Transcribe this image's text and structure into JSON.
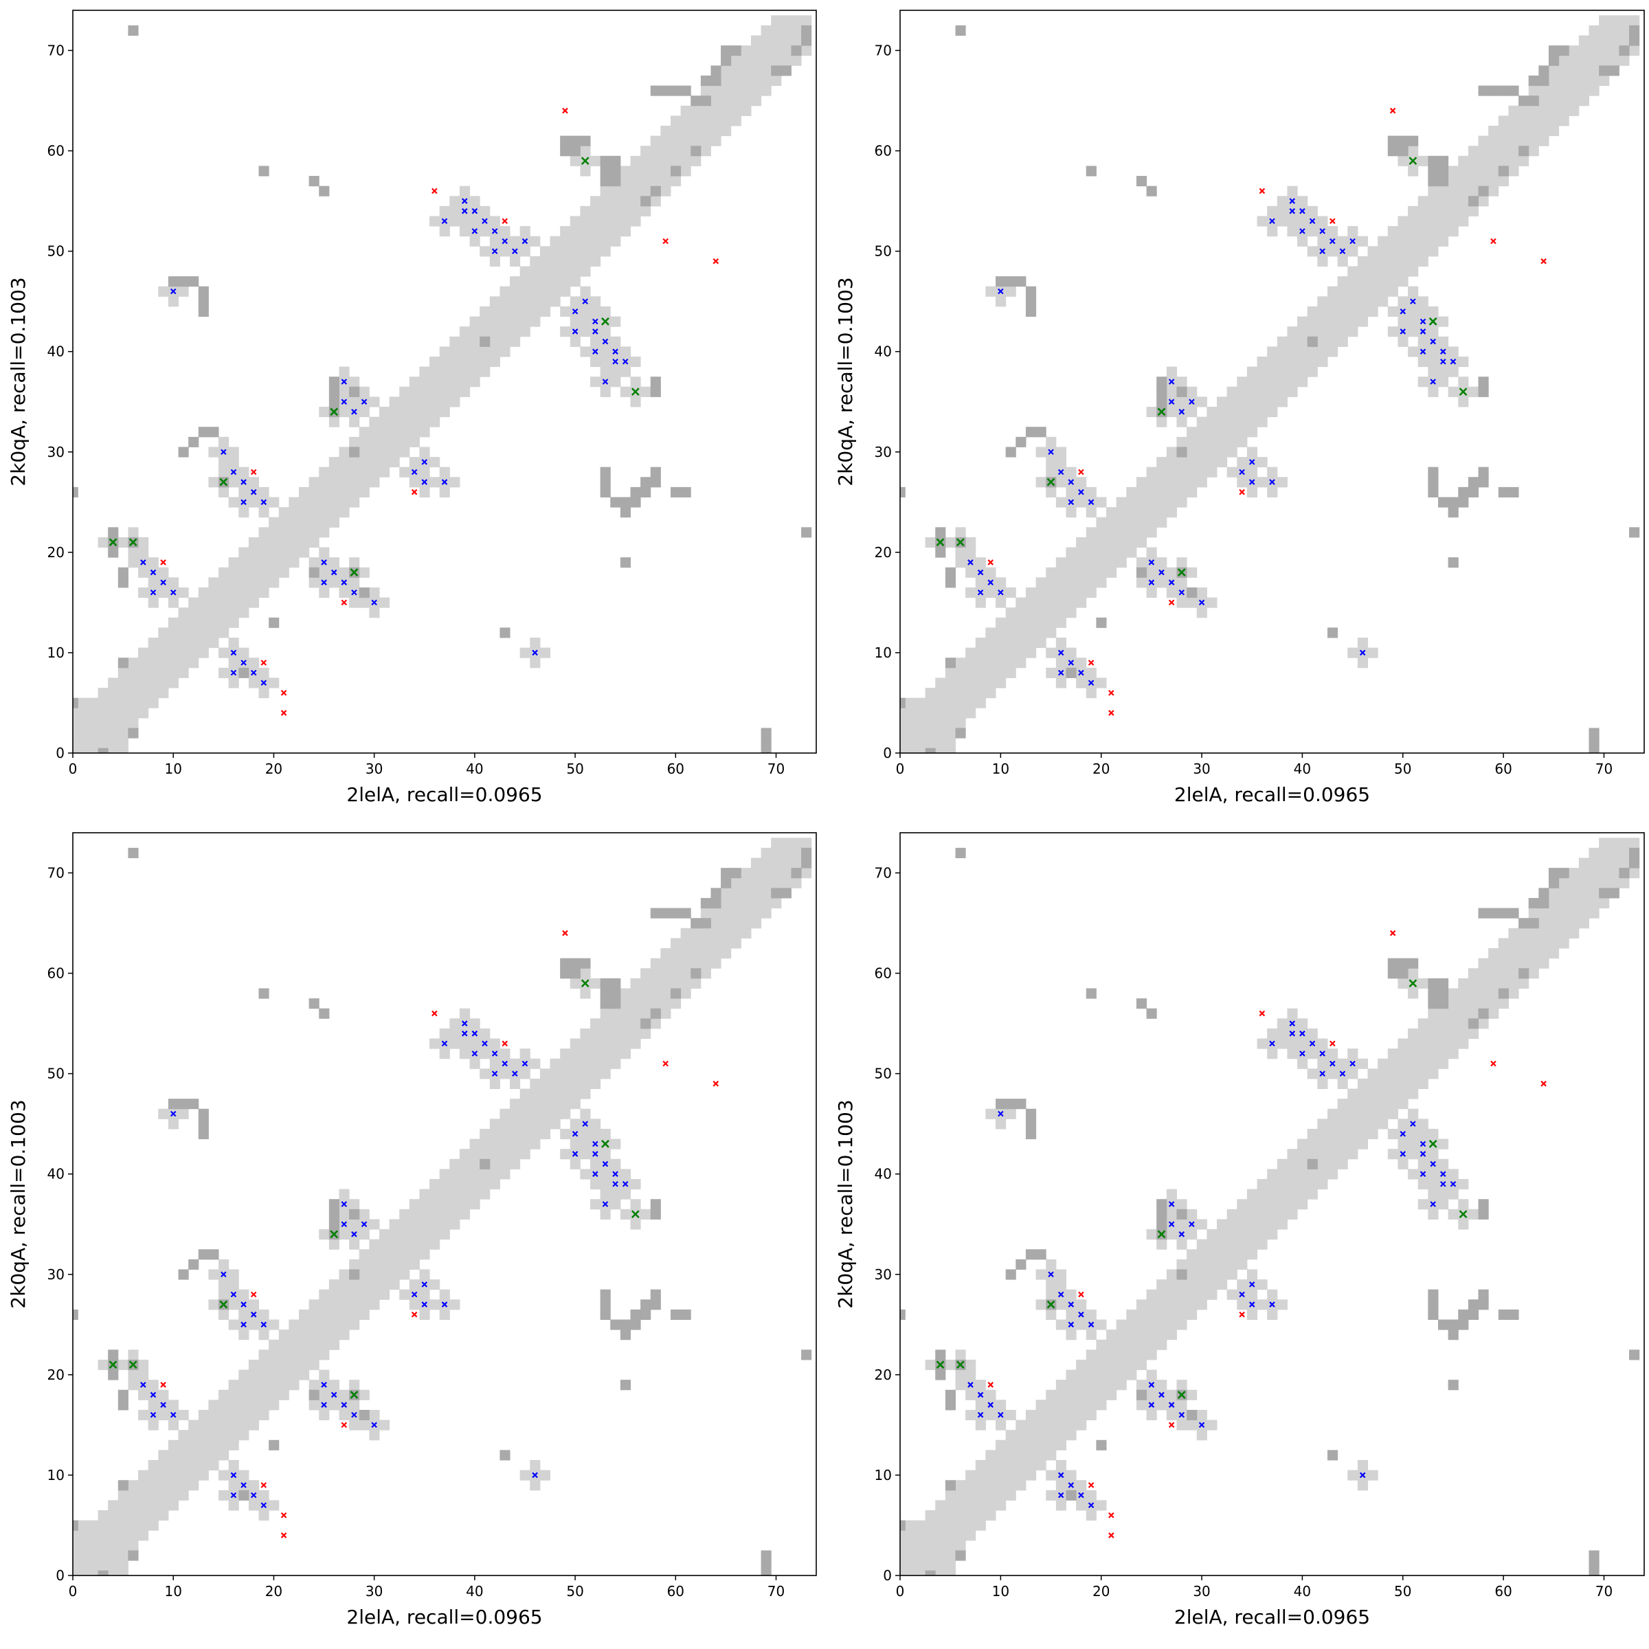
{
  "chart_data": {
    "type": "heatmap",
    "title": "",
    "layout": "2x2 grid of identical contact maps",
    "xlim": [
      0,
      74
    ],
    "ylim": [
      0,
      74
    ],
    "xticks": [
      0,
      10,
      20,
      30,
      40,
      50,
      60,
      70
    ],
    "yticks": [
      0,
      10,
      20,
      30,
      40,
      50,
      60,
      70
    ],
    "colors": {
      "light": "#d3d3d3",
      "dark": "#a9a9a9",
      "blue": "#0000ff",
      "green": "#008000",
      "red": "#ff0000"
    },
    "panels": [
      {
        "xlabel": "2lelA, recall=0.0965",
        "ylabel": "2k0qA, recall=0.1003"
      },
      {
        "xlabel": "2lelA, recall=0.0965",
        "ylabel": "2k0qA, recall=0.1003"
      },
      {
        "xlabel": "2lelA, recall=0.0965",
        "ylabel": "2k0qA, recall=0.1003"
      },
      {
        "xlabel": "2lelA, recall=0.0965",
        "ylabel": "2k0qA, recall=0.1003"
      }
    ],
    "diagonal_band_halfwidth": 3,
    "dark_cells": [
      [
        6,
        72
      ],
      [
        19,
        58
      ],
      [
        24,
        57
      ],
      [
        25,
        56
      ],
      [
        49,
        61
      ],
      [
        50,
        61
      ],
      [
        51,
        61
      ],
      [
        49,
        60
      ],
      [
        50,
        60
      ],
      [
        53,
        59
      ],
      [
        54,
        59
      ],
      [
        53,
        58
      ],
      [
        54,
        58
      ],
      [
        53,
        57
      ],
      [
        54,
        57
      ],
      [
        10,
        47
      ],
      [
        11,
        47
      ],
      [
        12,
        47
      ],
      [
        13,
        46
      ],
      [
        13,
        45
      ],
      [
        13,
        44
      ],
      [
        26,
        37
      ],
      [
        26,
        36
      ],
      [
        26,
        35
      ],
      [
        26,
        34
      ],
      [
        28,
        36
      ],
      [
        28,
        30
      ],
      [
        13,
        32
      ],
      [
        14,
        32
      ],
      [
        12,
        31
      ],
      [
        11,
        30
      ],
      [
        4,
        22
      ],
      [
        4,
        21
      ],
      [
        4,
        20
      ],
      [
        6,
        21
      ],
      [
        5,
        18
      ],
      [
        5,
        17
      ],
      [
        15,
        27
      ],
      [
        0,
        26
      ],
      [
        53,
        28
      ],
      [
        53,
        27
      ],
      [
        53,
        26
      ],
      [
        54,
        25
      ],
      [
        55,
        25
      ],
      [
        55,
        24
      ],
      [
        56,
        26
      ],
      [
        57,
        26
      ],
      [
        57,
        27
      ],
      [
        58,
        28
      ],
      [
        58,
        27
      ],
      [
        56,
        25
      ],
      [
        60,
        26
      ],
      [
        61,
        26
      ],
      [
        55,
        19
      ],
      [
        58,
        37
      ],
      [
        58,
        36
      ],
      [
        73,
        22
      ],
      [
        43,
        12
      ],
      [
        69,
        2
      ],
      [
        69,
        1
      ],
      [
        69,
        0
      ],
      [
        17,
        8
      ],
      [
        24,
        18
      ],
      [
        28,
        18
      ],
      [
        29,
        16
      ],
      [
        20,
        13
      ],
      [
        5,
        9
      ],
      [
        6,
        2
      ],
      [
        3,
        0
      ],
      [
        0,
        5
      ],
      [
        58,
        66
      ],
      [
        59,
        66
      ],
      [
        60,
        66
      ],
      [
        61,
        66
      ],
      [
        62,
        65
      ],
      [
        63,
        65
      ],
      [
        63,
        67
      ],
      [
        64,
        67
      ],
      [
        64,
        68
      ],
      [
        65,
        69
      ],
      [
        65,
        70
      ],
      [
        66,
        70
      ],
      [
        70,
        68
      ],
      [
        71,
        68
      ],
      [
        72,
        70
      ],
      [
        73,
        71
      ],
      [
        73,
        72
      ],
      [
        57,
        55
      ],
      [
        58,
        56
      ],
      [
        60,
        58
      ],
      [
        62,
        60
      ],
      [
        41,
        41
      ]
    ],
    "markers": {
      "blue": [
        [
          10,
          46
        ],
        [
          39,
          55
        ],
        [
          39,
          54
        ],
        [
          40,
          54
        ],
        [
          37,
          53
        ],
        [
          41,
          53
        ],
        [
          40,
          52
        ],
        [
          42,
          52
        ],
        [
          43,
          51
        ],
        [
          45,
          51
        ],
        [
          42,
          50
        ],
        [
          44,
          50
        ],
        [
          51,
          45
        ],
        [
          50,
          44
        ],
        [
          52,
          43
        ],
        [
          50,
          42
        ],
        [
          52,
          42
        ],
        [
          53,
          41
        ],
        [
          52,
          40
        ],
        [
          54,
          40
        ],
        [
          54,
          39
        ],
        [
          55,
          39
        ],
        [
          53,
          37
        ],
        [
          27,
          37
        ],
        [
          27,
          35
        ],
        [
          29,
          35
        ],
        [
          28,
          34
        ],
        [
          15,
          30
        ],
        [
          16,
          28
        ],
        [
          17,
          27
        ],
        [
          18,
          26
        ],
        [
          17,
          25
        ],
        [
          19,
          25
        ],
        [
          34,
          28
        ],
        [
          35,
          29
        ],
        [
          35,
          27
        ],
        [
          37,
          27
        ],
        [
          7,
          19
        ],
        [
          8,
          18
        ],
        [
          8,
          16
        ],
        [
          9,
          17
        ],
        [
          10,
          16
        ],
        [
          25,
          19
        ],
        [
          26,
          18
        ],
        [
          25,
          17
        ],
        [
          27,
          17
        ],
        [
          28,
          16
        ],
        [
          30,
          15
        ],
        [
          16,
          10
        ],
        [
          17,
          9
        ],
        [
          16,
          8
        ],
        [
          18,
          8
        ],
        [
          19,
          7
        ],
        [
          46,
          10
        ]
      ],
      "green": [
        [
          4,
          21
        ],
        [
          6,
          21
        ],
        [
          15,
          27
        ],
        [
          26,
          34
        ],
        [
          28,
          18
        ],
        [
          51,
          59
        ],
        [
          53,
          43
        ],
        [
          56,
          36
        ]
      ],
      "red": [
        [
          49,
          64
        ],
        [
          36,
          56
        ],
        [
          43,
          53
        ],
        [
          59,
          51
        ],
        [
          64,
          49
        ],
        [
          18,
          28
        ],
        [
          34,
          26
        ],
        [
          9,
          19
        ],
        [
          27,
          15
        ],
        [
          19,
          9
        ],
        [
          21,
          6
        ],
        [
          21,
          4
        ]
      ]
    }
  }
}
